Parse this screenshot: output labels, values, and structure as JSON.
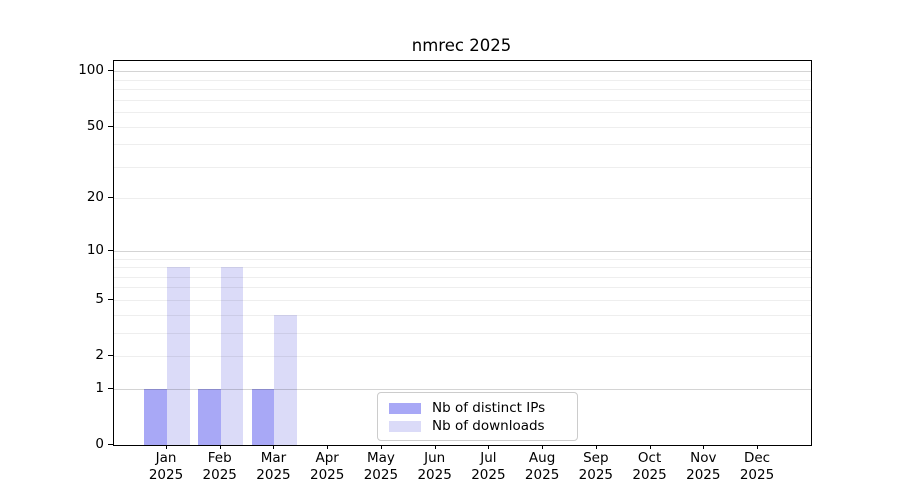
{
  "figure": {
    "background": "#ffffff",
    "axis_color": "#000000"
  },
  "chart_data": {
    "type": "bar",
    "title": "nmrec 2025",
    "xlabel": "",
    "ylabel": "",
    "categories": [
      "Jan\n2025",
      "Feb\n2025",
      "Mar\n2025",
      "Apr\n2025",
      "May\n2025",
      "Jun\n2025",
      "Jul\n2025",
      "Aug\n2025",
      "Sep\n2025",
      "Oct\n2025",
      "Nov\n2025",
      "Dec\n2025"
    ],
    "series": [
      {
        "name": "Nb of distinct IPs",
        "color": "#a8a8f6",
        "values": [
          1,
          1,
          1,
          0,
          0,
          0,
          0,
          0,
          0,
          0,
          0,
          0
        ]
      },
      {
        "name": "Nb of downloads",
        "color": "#dbdbf8",
        "values": [
          8,
          8,
          4,
          0,
          0,
          0,
          0,
          0,
          0,
          0,
          0,
          0
        ]
      }
    ],
    "y_axis": {
      "scale": "log1p",
      "ticks": [
        0,
        1,
        2,
        5,
        10,
        20,
        50,
        100
      ],
      "minor_gridlines": [
        2,
        3,
        4,
        5,
        6,
        7,
        8,
        9,
        20,
        30,
        40,
        50,
        60,
        70,
        80,
        90
      ],
      "major_gridlines": [
        1,
        10,
        100
      ],
      "top_value": 113
    },
    "grid": "horizontal",
    "legend_position": "lower-center-inside"
  }
}
